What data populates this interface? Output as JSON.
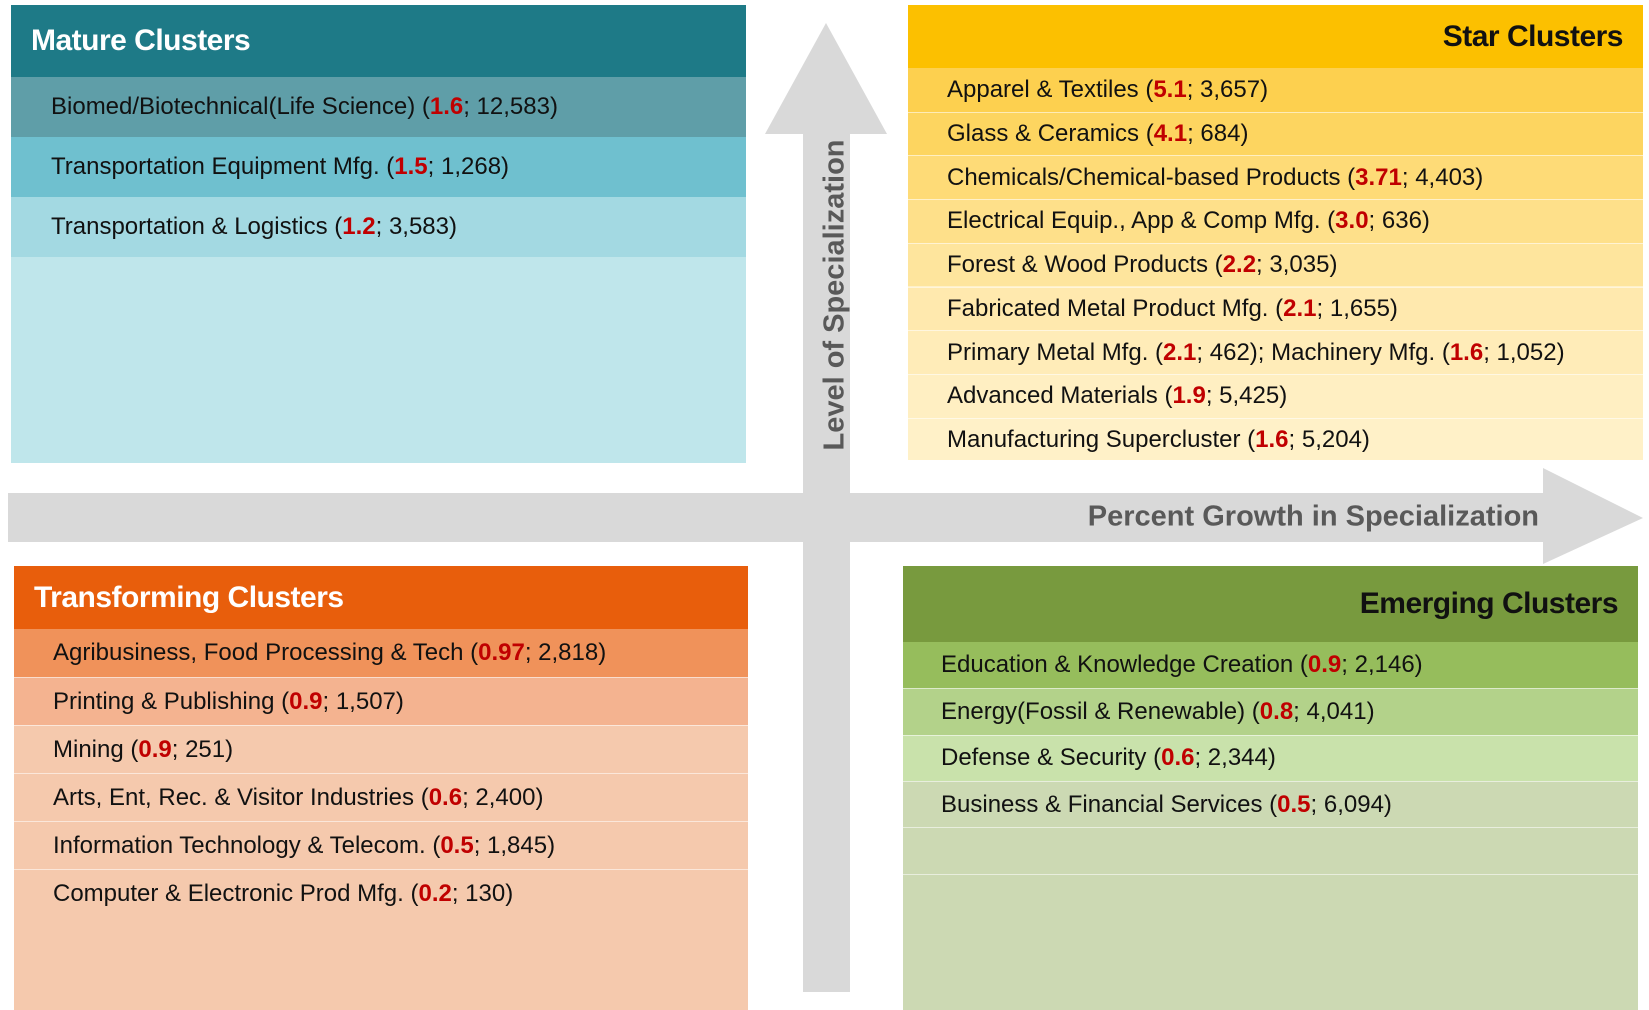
{
  "quadrants": [
    {
      "title": "Mature Clusters",
      "items": [
        [
          "Biomed/Biotechnical(Life Science) (",
          "1.6",
          "; 12,583)"
        ],
        [
          "Transportation Equipment Mfg. (",
          "1.5",
          "; 1,268)"
        ],
        [
          "Transportation & Logistics (",
          "1.2",
          "; 3,583)"
        ]
      ]
    },
    {
      "title": "Star Clusters",
      "items": [
        [
          "Apparel & Textiles (",
          "5.1",
          "; 3,657)"
        ],
        [
          "Glass & Ceramics (",
          "4.1",
          "; 684)"
        ],
        [
          "Chemicals/Chemical-based Products (",
          "3.71",
          "; 4,403)"
        ],
        [
          "Electrical Equip., App & Comp Mfg. (",
          "3.0",
          "; 636)"
        ],
        [
          "Forest & Wood Products (",
          "2.2",
          "; 3,035)"
        ],
        [
          "Fabricated Metal Product Mfg. (",
          "2.1",
          "; 1,655)"
        ],
        [
          "Primary Metal Mfg. (",
          "2.1",
          "; 462); Machinery Mfg. (",
          "1.6",
          "; 1,052)"
        ],
        [
          "Advanced Materials (",
          "1.9",
          "; 5,425)"
        ],
        [
          "Manufacturing Supercluster (",
          "1.6",
          "; 5,204)"
        ]
      ]
    },
    {
      "title": "Transforming Clusters",
      "items": [
        [
          "Agribusiness, Food Processing & Tech (",
          "0.97",
          "; 2,818)"
        ],
        [
          "Printing & Publishing (",
          "0.9",
          "; 1,507)"
        ],
        [
          "Mining (",
          "0.9",
          "; 251)"
        ],
        [
          "Arts, Ent, Rec. & Visitor Industries (",
          "0.6",
          "; 2,400)"
        ],
        [
          "Information Technology & Telecom. (",
          "0.5",
          "; 1,845)"
        ],
        [
          "Computer & Electronic Prod Mfg. (",
          "0.2",
          "; 130)"
        ]
      ]
    },
    {
      "title": "Emerging Clusters",
      "items": [
        [
          "Education & Knowledge Creation (",
          "0.9",
          "; 2,146)"
        ],
        [
          "Energy(Fossil & Renewable) (",
          "0.8",
          "; 4,041)"
        ],
        [
          "Defense & Security (",
          "0.6",
          "; 2,344)"
        ],
        [
          "Business & Financial Services (",
          "0.5",
          "; 6,094)"
        ]
      ]
    }
  ],
  "axes": {
    "vertical": "Level of Specialization",
    "horizontal": "Percent Growth in Specialization"
  }
}
